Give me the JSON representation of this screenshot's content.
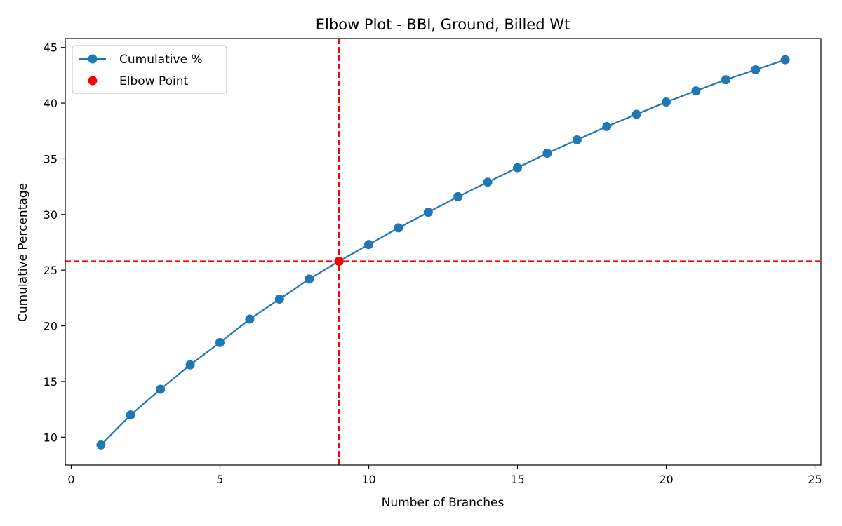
{
  "chart_data": {
    "type": "line",
    "title": "Elbow Plot - BBI, Ground, Billed Wt",
    "xlabel": "Number of Branches",
    "ylabel": "Cumulative Percentage",
    "xlim": [
      -0.2,
      25.2
    ],
    "ylim": [
      7.5,
      45.8
    ],
    "xticks": [
      0,
      5,
      10,
      15,
      20,
      25
    ],
    "yticks": [
      10,
      15,
      20,
      25,
      30,
      35,
      40,
      45
    ],
    "grid": false,
    "legend_position": "top-left",
    "series": [
      {
        "name": "Cumulative %",
        "color": "#1f77b4",
        "marker": "circle",
        "x": [
          1,
          2,
          3,
          4,
          5,
          6,
          7,
          8,
          9,
          10,
          11,
          12,
          13,
          14,
          15,
          16,
          17,
          18,
          19,
          20,
          21,
          22,
          23,
          24
        ],
        "y": [
          9.3,
          12.0,
          14.3,
          16.5,
          18.5,
          20.6,
          22.4,
          24.2,
          25.8,
          27.3,
          28.8,
          30.2,
          31.6,
          32.9,
          34.2,
          35.5,
          36.7,
          37.9,
          39.0,
          40.1,
          41.1,
          42.1,
          43.0,
          43.9
        ]
      }
    ],
    "elbow_point": {
      "name": "Elbow Point",
      "x": 9,
      "y": 25.8,
      "color": "#ff0000"
    },
    "reference_lines": {
      "color": "#ff0000",
      "style": "dashed",
      "vertical_x": 9,
      "horizontal_y": 25.8
    }
  }
}
